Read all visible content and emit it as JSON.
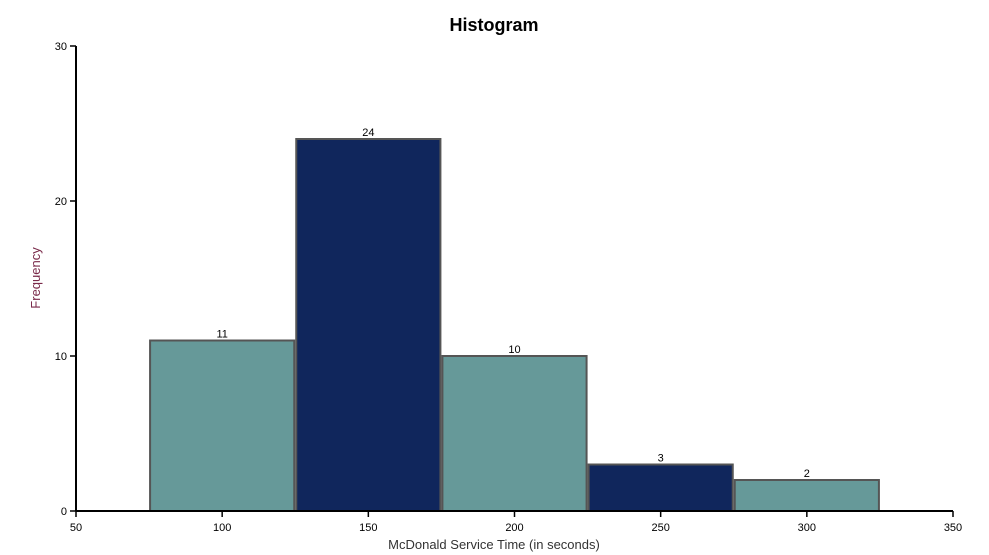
{
  "chart_data": {
    "type": "bar",
    "title": "Histogram",
    "xlabel": "McDonald Service Time (in seconds)",
    "ylabel": "Frequency",
    "xlim": [
      50,
      350
    ],
    "ylim": [
      0,
      30
    ],
    "x_ticks": [
      "50",
      "100",
      "150",
      "200",
      "250",
      "300",
      "350"
    ],
    "y_ticks": [
      "0",
      "10",
      "20",
      "30"
    ],
    "bins": [
      {
        "start": 75,
        "end": 125,
        "value": 11,
        "label": "11",
        "color": "#669999"
      },
      {
        "start": 125,
        "end": 175,
        "value": 24,
        "label": "24",
        "color": "#10265c"
      },
      {
        "start": 175,
        "end": 225,
        "value": 10,
        "label": "10",
        "color": "#669999"
      },
      {
        "start": 225,
        "end": 275,
        "value": 3,
        "label": "3",
        "color": "#10265c"
      },
      {
        "start": 275,
        "end": 325,
        "value": 2,
        "label": "2",
        "color": "#669999"
      }
    ],
    "bar_stroke": "#555555",
    "ylabel_color": "#7a2a4a",
    "xlabel_color": "#333333",
    "grid": false,
    "legend": "none"
  }
}
